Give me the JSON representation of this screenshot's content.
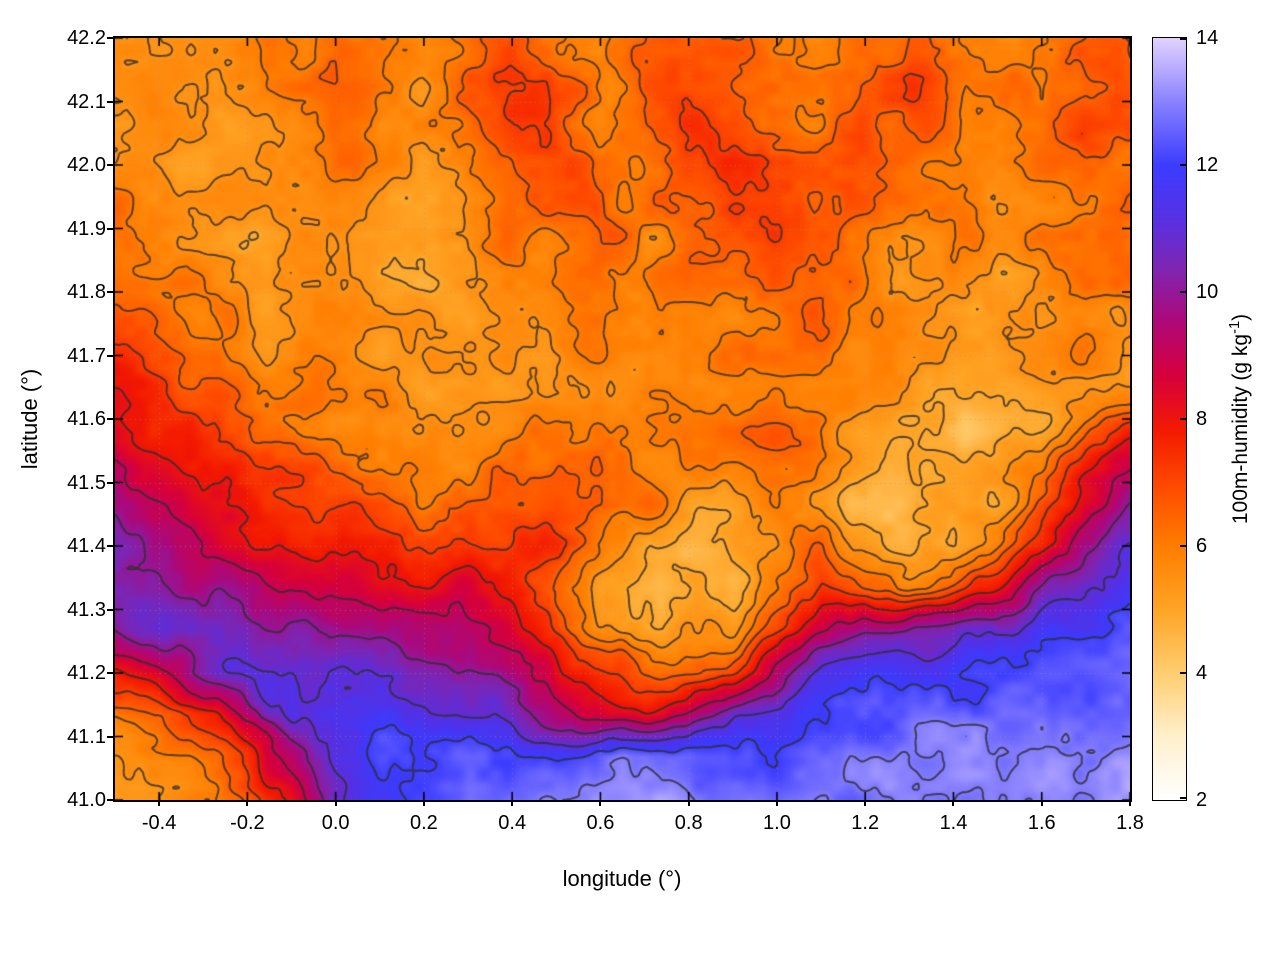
{
  "chart_data": {
    "type": "heatmap",
    "title": "",
    "xlabel": "longitude (°)",
    "ylabel": "latitude (°)",
    "xlim": [
      -0.5,
      1.8
    ],
    "ylim": [
      41.0,
      42.2
    ],
    "x_ticks": [
      -0.4,
      -0.2,
      0.0,
      0.2,
      0.4,
      0.6,
      0.8,
      1.0,
      1.2,
      1.4,
      1.6,
      1.8
    ],
    "x_tick_labels": [
      "-0.4",
      "-0.2",
      "0.0",
      "0.2",
      "0.4",
      "0.6",
      "0.8",
      "1.0",
      "1.2",
      "1.4",
      "1.6",
      "1.8"
    ],
    "y_ticks": [
      41.0,
      41.1,
      41.2,
      41.3,
      41.4,
      41.5,
      41.6,
      41.7,
      41.8,
      41.9,
      42.0,
      42.1,
      42.2
    ],
    "y_tick_labels": [
      "41.0",
      "41.1",
      "41.2",
      "41.3",
      "41.4",
      "41.5",
      "41.6",
      "41.7",
      "41.8",
      "41.9",
      "42.0",
      "42.1",
      "42.2"
    ],
    "grid": true,
    "colorbar": {
      "label": "100m-humidity (g kg⁻¹)",
      "label_prefix": "100m-humidity (g kg",
      "label_sup": "-1",
      "label_suffix": ")",
      "min": 2,
      "max": 14,
      "ticks": [
        2,
        4,
        6,
        8,
        10,
        12,
        14
      ],
      "tick_labels": [
        "2",
        "4",
        "6",
        "8",
        "10",
        "12",
        "14"
      ],
      "stops": [
        [
          2,
          "#ffffff"
        ],
        [
          3,
          "#fff0cd"
        ],
        [
          4,
          "#ffcd70"
        ],
        [
          5,
          "#ffa425"
        ],
        [
          6,
          "#ff7d00"
        ],
        [
          6.9,
          "#ff4c00"
        ],
        [
          7.8,
          "#f41a00"
        ],
        [
          8.7,
          "#d6003d"
        ],
        [
          9.6,
          "#ab0a7d"
        ],
        [
          10.4,
          "#7d26b4"
        ],
        [
          11.2,
          "#5531e6"
        ],
        [
          12,
          "#3c3cff"
        ],
        [
          13,
          "#8a82ff"
        ],
        [
          14,
          "#e2d2ff"
        ]
      ]
    },
    "contour_levels": [
      4.9,
      5.45,
      6.0,
      6.55,
      7.2,
      8.0,
      9.0,
      10.0,
      11.0,
      12.0,
      12.9
    ],
    "contour_color": "#2e2e2e",
    "field": {
      "nx": 24,
      "ny": 19,
      "lon_min": -0.5,
      "lon_max": 1.8,
      "lat_min": 41.0,
      "lat_max": 42.2,
      "order": "rows from north (42.2) to south (41.0)",
      "values": [
        [
          5.8,
          5.6,
          5.5,
          5.7,
          6.0,
          6.2,
          5.9,
          5.6,
          6.3,
          6.8,
          6.2,
          5.8,
          6.6,
          7.1,
          6.6,
          6.1,
          5.9,
          6.4,
          6.8,
          6.2,
          5.8,
          6.0,
          6.5,
          6.3
        ],
        [
          5.6,
          5.4,
          5.3,
          5.6,
          6.1,
          6.4,
          6.0,
          5.5,
          6.5,
          7.2,
          6.5,
          5.9,
          6.9,
          7.3,
          6.8,
          6.2,
          6.0,
          6.6,
          7.0,
          6.4,
          6.0,
          6.2,
          6.8,
          6.5
        ],
        [
          5.6,
          5.4,
          5.2,
          5.5,
          6.0,
          6.3,
          5.8,
          5.4,
          6.2,
          7.0,
          6.8,
          6.0,
          6.6,
          7.4,
          7.0,
          6.4,
          6.2,
          6.8,
          6.6,
          6.2,
          5.8,
          6.4,
          7.0,
          6.6
        ],
        [
          6.0,
          5.6,
          5.2,
          5.4,
          5.8,
          6.0,
          5.6,
          5.3,
          6.0,
          6.6,
          7.0,
          6.4,
          6.2,
          7.2,
          7.4,
          6.8,
          6.4,
          6.6,
          6.2,
          6.0,
          5.6,
          6.2,
          6.8,
          6.4
        ],
        [
          6.4,
          6.0,
          5.5,
          5.3,
          5.6,
          5.8,
          5.5,
          5.2,
          5.8,
          6.2,
          6.6,
          6.8,
          6.0,
          6.6,
          7.0,
          7.2,
          6.6,
          6.2,
          5.8,
          5.9,
          5.5,
          6.0,
          6.4,
          6.2
        ],
        [
          6.2,
          5.9,
          5.5,
          5.2,
          5.5,
          5.6,
          5.4,
          5.1,
          5.6,
          6.0,
          6.2,
          6.4,
          5.8,
          6.2,
          6.6,
          6.8,
          6.9,
          6.0,
          5.6,
          5.8,
          5.4,
          5.8,
          6.2,
          6.0
        ],
        [
          6.6,
          6.1,
          5.7,
          5.3,
          5.4,
          5.5,
          5.3,
          5.0,
          5.4,
          5.8,
          6.0,
          6.2,
          5.6,
          6.0,
          6.3,
          6.5,
          6.6,
          5.8,
          5.5,
          5.6,
          5.2,
          5.6,
          6.0,
          5.8
        ],
        [
          7.1,
          6.6,
          6.0,
          5.6,
          5.5,
          5.6,
          5.4,
          5.1,
          5.3,
          5.6,
          5.8,
          6.0,
          5.5,
          5.8,
          6.0,
          6.2,
          6.4,
          5.7,
          5.4,
          5.4,
          5.0,
          5.4,
          5.8,
          5.6
        ],
        [
          7.7,
          7.2,
          6.6,
          6.0,
          5.8,
          5.8,
          5.5,
          5.2,
          5.4,
          5.5,
          5.6,
          5.8,
          5.4,
          5.6,
          5.8,
          6.0,
          6.2,
          5.6,
          5.2,
          4.9,
          5.1,
          5.3,
          5.6,
          5.4
        ],
        [
          8.3,
          7.8,
          7.2,
          6.6,
          6.2,
          6.0,
          5.7,
          5.4,
          5.6,
          5.8,
          5.9,
          6.0,
          5.6,
          5.8,
          6.0,
          6.2,
          6.0,
          5.4,
          4.9,
          4.7,
          4.6,
          5.0,
          6.2,
          6.8
        ],
        [
          8.9,
          8.4,
          7.8,
          7.2,
          6.8,
          6.5,
          6.2,
          5.8,
          6.0,
          6.2,
          6.3,
          6.4,
          6.0,
          6.2,
          6.4,
          6.6,
          5.8,
          5.0,
          4.7,
          4.6,
          4.8,
          5.6,
          7.5,
          8.5
        ],
        [
          9.5,
          9.0,
          8.4,
          7.8,
          7.4,
          7.0,
          6.8,
          6.4,
          6.6,
          6.8,
          7.0,
          6.8,
          6.2,
          5.6,
          5.2,
          5.8,
          5.2,
          4.8,
          4.6,
          4.7,
          5.0,
          6.5,
          8.5,
          9.5
        ],
        [
          10.1,
          9.6,
          9.0,
          8.4,
          8.0,
          7.6,
          7.4,
          7.2,
          7.4,
          7.6,
          7.2,
          6.0,
          5.2,
          4.9,
          4.8,
          5.4,
          6.4,
          5.4,
          4.8,
          5.0,
          6.0,
          8.0,
          10.0,
          10.9
        ],
        [
          10.6,
          10.2,
          9.8,
          9.4,
          9.0,
          8.6,
          8.4,
          8.2,
          8.4,
          8.0,
          6.8,
          5.4,
          4.9,
          4.7,
          4.8,
          5.6,
          7.5,
          7.0,
          6.2,
          6.8,
          8.2,
          10.0,
          11.2,
          11.6
        ],
        [
          9.8,
          10.8,
          10.6,
          10.4,
          10.2,
          9.8,
          9.6,
          9.4,
          9.2,
          8.6,
          7.4,
          6.0,
          5.4,
          5.2,
          5.6,
          7.0,
          9.0,
          10.0,
          10.2,
          10.5,
          11.0,
          11.5,
          11.8,
          12.0
        ],
        [
          7.5,
          8.6,
          10.5,
          11.2,
          11.2,
          11.0,
          10.8,
          10.6,
          10.2,
          9.4,
          8.4,
          7.4,
          6.6,
          6.4,
          7.0,
          9.0,
          11.0,
          11.5,
          11.6,
          11.8,
          12.0,
          12.2,
          12.3,
          12.4
        ],
        [
          6.0,
          6.5,
          7.5,
          9.5,
          11.5,
          11.8,
          11.6,
          11.4,
          11.0,
          10.4,
          9.6,
          8.8,
          8.4,
          9.0,
          10.5,
          11.5,
          12.0,
          12.2,
          12.4,
          12.5,
          12.6,
          12.7,
          12.8,
          12.8
        ],
        [
          5.5,
          5.8,
          6.3,
          7.5,
          9.5,
          11.5,
          12.2,
          12.4,
          12.6,
          12.4,
          12.0,
          12.6,
          12.9,
          12.6,
          12.2,
          12.4,
          12.6,
          12.7,
          12.8,
          12.9,
          13.0,
          13.0,
          13.1,
          13.1
        ],
        [
          5.2,
          5.5,
          6.0,
          6.8,
          8.0,
          10.5,
          12.0,
          12.4,
          12.6,
          12.8,
          13.0,
          13.3,
          13.4,
          13.2,
          12.8,
          12.6,
          12.7,
          12.8,
          12.9,
          13.0,
          13.1,
          13.1,
          13.2,
          13.2
        ]
      ]
    }
  }
}
